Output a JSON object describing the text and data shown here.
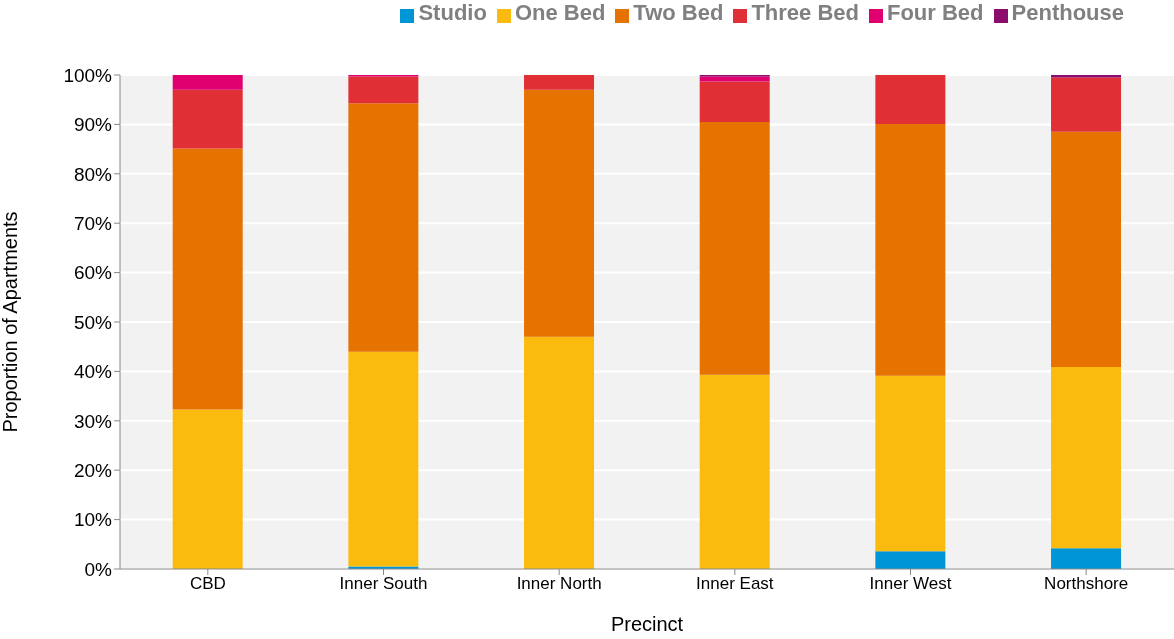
{
  "chart_data": {
    "type": "bar",
    "stacked": true,
    "xlabel": "Precinct",
    "ylabel": "Proportion of Apartments",
    "categories": [
      "CBD",
      "Inner South",
      "Inner North",
      "Inner East",
      "Inner West",
      "Northshore"
    ],
    "series": [
      {
        "name": "Studio",
        "color": "#0095d5",
        "values": [
          0,
          0.5,
          0,
          0,
          3.6,
          4.2
        ]
      },
      {
        "name": "One Bed",
        "color": "#fbba0e",
        "values": [
          32.3,
          43.5,
          47,
          39.3,
          35.5,
          36.7
        ]
      },
      {
        "name": "Two Bed",
        "color": "#e67200",
        "values": [
          52.8,
          50.3,
          50,
          51.2,
          51,
          47.6
        ]
      },
      {
        "name": "Three Bed",
        "color": "#e12f36",
        "values": [
          11.9,
          5.4,
          3,
          8.2,
          9.9,
          11
        ]
      },
      {
        "name": "Four Bed",
        "color": "#e0006f",
        "values": [
          3,
          0.3,
          0,
          1,
          0,
          0
        ]
      },
      {
        "name": "Penthouse",
        "color": "#8c0c6e",
        "values": [
          0,
          0,
          0,
          0.3,
          0,
          0.5
        ]
      }
    ],
    "ylim": [
      0,
      100
    ],
    "yticks": [
      {
        "value": 0,
        "label": "0%"
      },
      {
        "value": 10,
        "label": "10%"
      },
      {
        "value": 20,
        "label": "20%"
      },
      {
        "value": 30,
        "label": "30%"
      },
      {
        "value": 40,
        "label": "40%"
      },
      {
        "value": 50,
        "label": "50%"
      },
      {
        "value": 60,
        "label": "60%"
      },
      {
        "value": 70,
        "label": "70%"
      },
      {
        "value": 80,
        "label": "80%"
      },
      {
        "value": 90,
        "label": "90%"
      },
      {
        "value": 100,
        "label": "100%"
      }
    ],
    "grid": "y",
    "legend": "top right"
  }
}
